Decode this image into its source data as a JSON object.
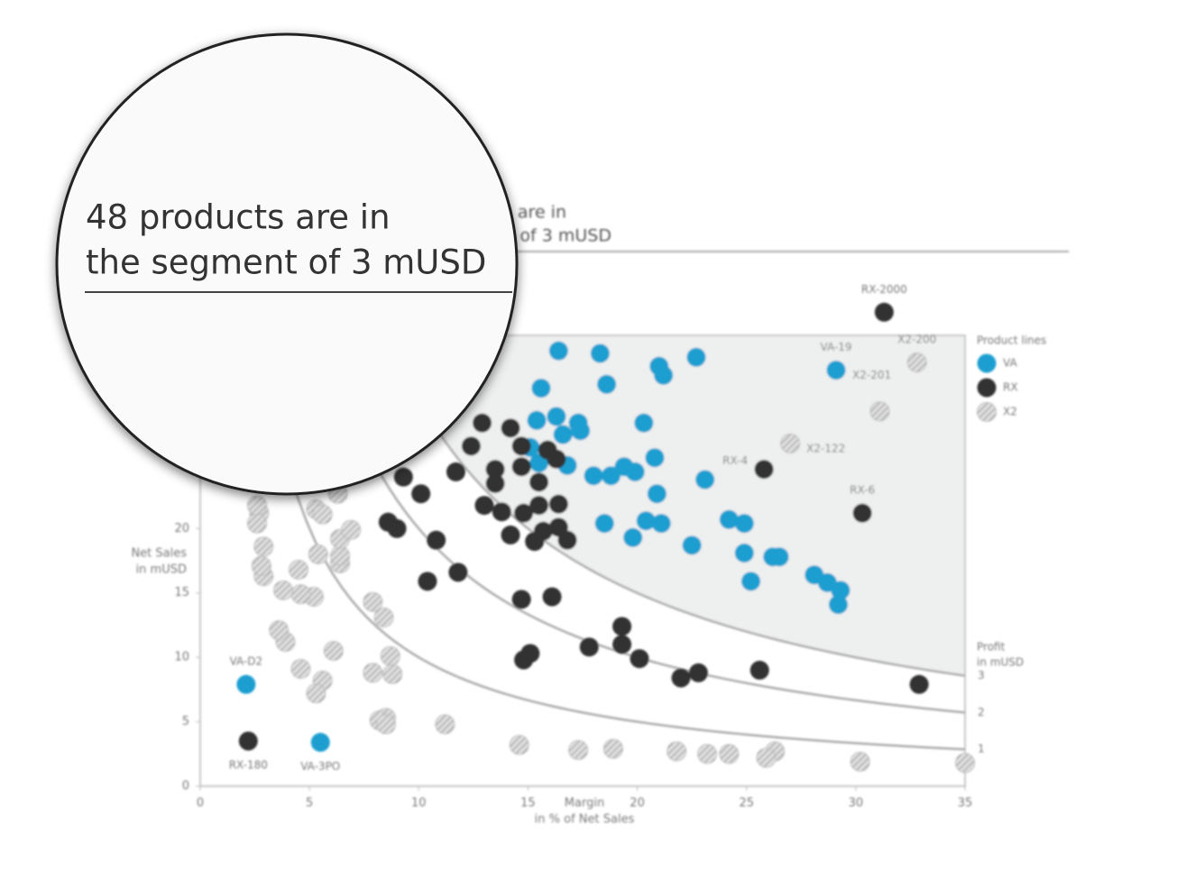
{
  "chart_data": {
    "type": "scatter",
    "title_lines": [
      "48 products  are in",
      "the segment of 3 mUSD"
    ],
    "y_label": [
      "Net Sales",
      "in mUSD"
    ],
    "x_label": [
      "Margin",
      "in % of Net Sales"
    ],
    "curve_label": [
      "Profit",
      "in mUSD"
    ],
    "profit_curves": [
      1,
      2,
      3
    ],
    "legend_title": "Product lines",
    "legend": "right",
    "xlim": [
      0,
      35
    ],
    "ylim": [
      0,
      35
    ],
    "xticks": [
      0,
      5,
      10,
      15,
      20,
      25,
      30,
      35
    ],
    "yticks": [
      0,
      5,
      10,
      15,
      20
    ],
    "series": [
      {
        "name": "VA",
        "color": "#1e9fd0",
        "pattern": "solid",
        "x": [
          16.4,
          18.3,
          22.7,
          21.0,
          21.2,
          18.6,
          15.6,
          29.1,
          15.4,
          16.3,
          17.3,
          17.4,
          16.6,
          20.3,
          15.1,
          15.5,
          16.8,
          18.0,
          18.8,
          19.4,
          19.9,
          20.8,
          20.9,
          23.1,
          18.5,
          19.8,
          20.4,
          21.1,
          22.5,
          24.2,
          24.9,
          24.9,
          26.2,
          26.5,
          25.2,
          28.1,
          28.7,
          29.3,
          29.2,
          2.1,
          5.5
        ],
        "y": [
          33.8,
          33.6,
          33.3,
          32.6,
          31.9,
          31.2,
          30.9,
          32.3,
          28.4,
          28.7,
          28.2,
          27.6,
          27.3,
          28.2,
          26.3,
          25.1,
          24.9,
          24.1,
          24.1,
          24.8,
          24.4,
          25.5,
          22.7,
          23.8,
          20.4,
          19.3,
          20.6,
          20.4,
          18.7,
          20.7,
          20.4,
          18.1,
          17.8,
          17.8,
          15.9,
          16.4,
          15.8,
          15.2,
          14.1,
          7.9,
          3.4
        ]
      },
      {
        "name": "RX",
        "color": "#333333",
        "pattern": "solid",
        "x": [
          31.3,
          25.8,
          30.3,
          32.9,
          2.2,
          12.9,
          14.2,
          12.4,
          14.7,
          15.9,
          16.3,
          14.7,
          13.5,
          13.5,
          11.7,
          9.3,
          10.1,
          15.5,
          13.0,
          13.8,
          14.8,
          15.5,
          16.4,
          15.7,
          16.4,
          16.8,
          14.2,
          15.3,
          8.6,
          9.0,
          10.8,
          10.4,
          11.8,
          14.7,
          16.1,
          19.3,
          17.8,
          19.3,
          20.1,
          15.1,
          14.8,
          22.0,
          22.8,
          25.6
        ],
        "y": [
          36.8,
          24.6,
          21.2,
          7.9,
          3.5,
          28.2,
          27.8,
          26.4,
          26.4,
          26.1,
          25.4,
          24.8,
          24.6,
          23.5,
          24.4,
          24.0,
          22.7,
          23.6,
          21.8,
          21.3,
          21.2,
          21.8,
          21.9,
          19.8,
          20.1,
          19.1,
          19.5,
          19.0,
          20.5,
          20.0,
          19.1,
          15.9,
          16.6,
          14.5,
          14.7,
          12.4,
          10.8,
          11.0,
          9.9,
          10.3,
          9.8,
          8.4,
          8.8,
          9.0
        ]
      },
      {
        "name": "X2",
        "color": "#999999",
        "pattern": "hatch",
        "x": [
          32.8,
          31.1,
          27.0,
          35.0,
          30.2,
          26.3,
          25.9,
          24.2,
          23.2,
          21.8,
          18.9,
          17.3,
          14.6,
          11.2,
          8.5,
          8.2,
          8.5,
          8.7,
          8.8,
          7.9,
          8.4,
          7.9,
          6.4,
          6.4,
          6.4,
          6.9,
          5.4,
          4.5,
          5.2,
          4.6,
          3.8,
          2.9,
          2.8,
          2.9,
          2.7,
          2.6,
          2.6,
          6.1,
          5.6,
          5.3,
          4.6,
          3.9,
          3.6,
          5.3,
          5.6,
          6.3
        ],
        "y": [
          32.9,
          29.1,
          26.6,
          1.8,
          1.9,
          2.7,
          2.2,
          2.5,
          2.5,
          2.7,
          2.9,
          2.8,
          3.2,
          4.8,
          5.3,
          5.1,
          4.8,
          10.1,
          8.7,
          8.8,
          13.1,
          14.3,
          17.3,
          17.9,
          19.2,
          19.9,
          18.0,
          16.8,
          14.7,
          14.9,
          15.2,
          16.3,
          17.1,
          18.6,
          21.2,
          20.4,
          21.8,
          10.5,
          8.2,
          7.2,
          9.1,
          11.2,
          12.1,
          21.5,
          21.1,
          22.7
        ]
      }
    ],
    "annotations": [
      {
        "text": "RX-2000",
        "x": 31.3,
        "y": 36.8,
        "side": "above"
      },
      {
        "text": "VA-19",
        "x": 29.1,
        "y": 32.3,
        "side": "above"
      },
      {
        "text": "X2-201",
        "x": 29.1,
        "y": 32.3,
        "side": "right"
      },
      {
        "text": "X2-200",
        "x": 32.8,
        "y": 32.9,
        "side": "above"
      },
      {
        "text": "X2-122",
        "x": 27.0,
        "y": 26.6,
        "side": "right"
      },
      {
        "text": "RX-4",
        "x": 25.8,
        "y": 24.6,
        "side": "left"
      },
      {
        "text": "RX-6",
        "x": 30.3,
        "y": 21.2,
        "side": "above"
      },
      {
        "text": "VA-D2",
        "x": 2.1,
        "y": 7.9,
        "side": "above"
      },
      {
        "text": "RX-180",
        "x": 2.2,
        "y": 3.5,
        "side": "below"
      },
      {
        "text": "VA-3PO",
        "x": 5.5,
        "y": 3.4,
        "side": "below"
      }
    ]
  }
}
